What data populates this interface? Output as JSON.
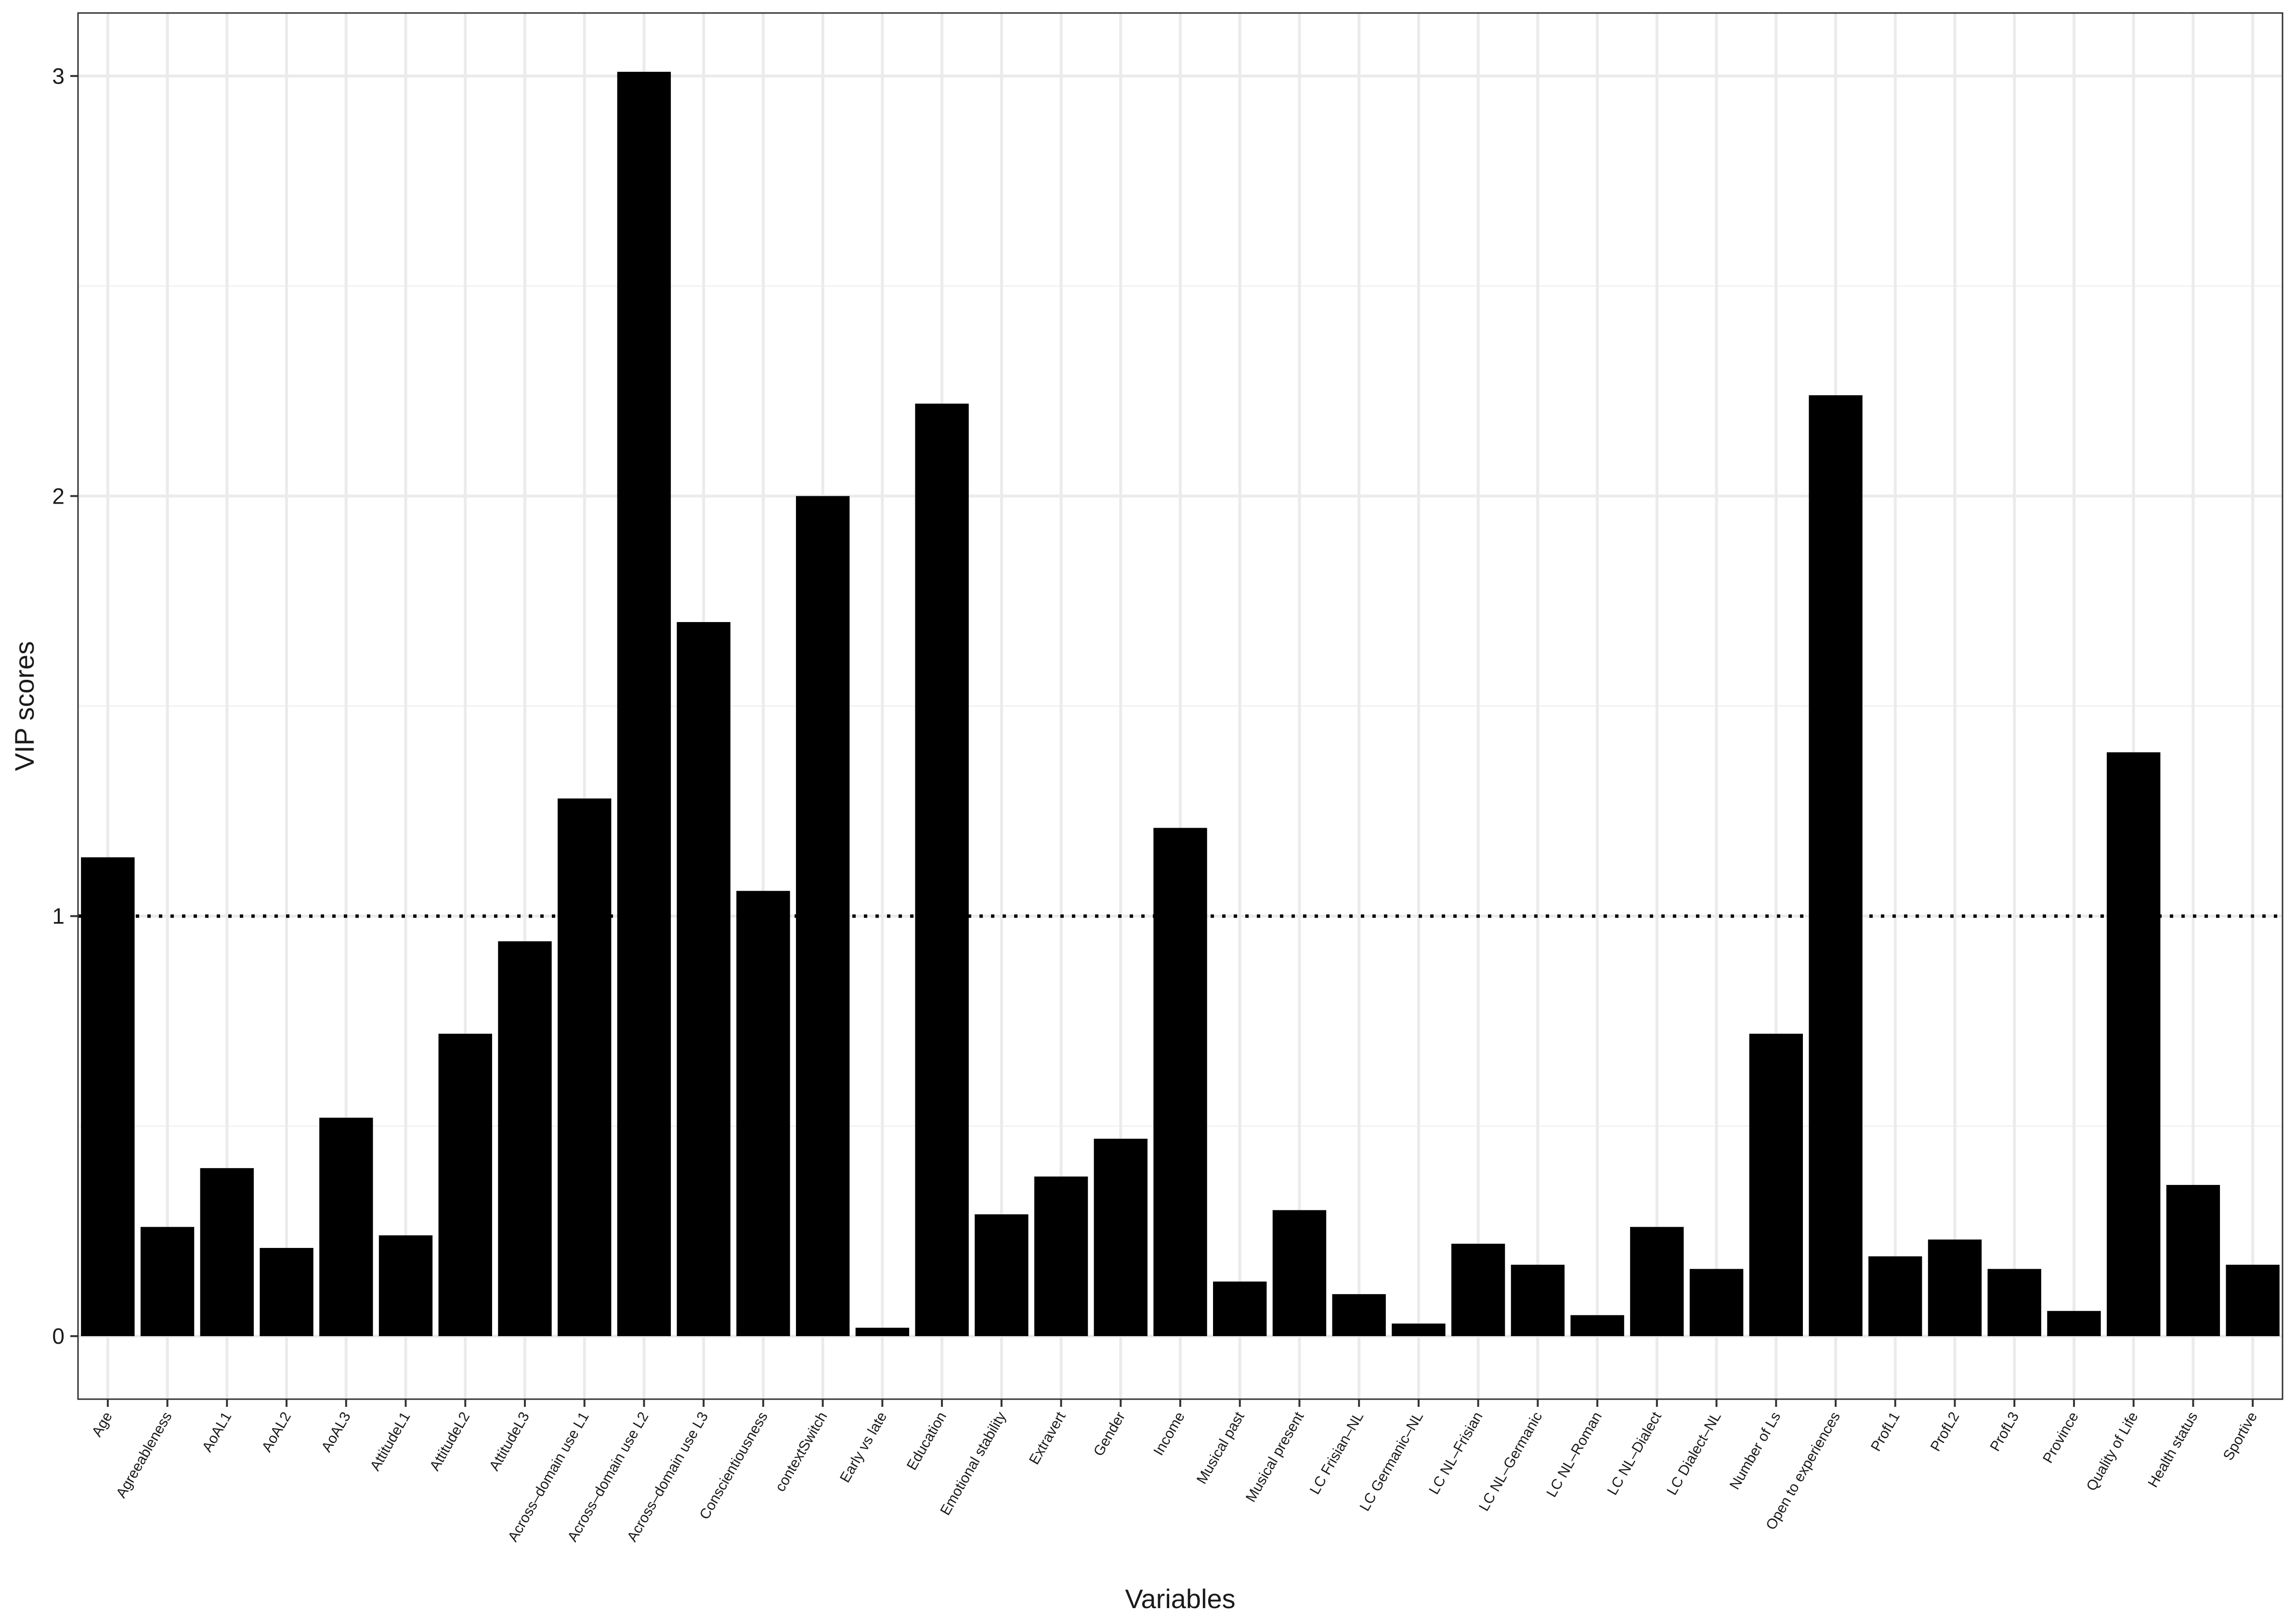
{
  "chart_data": {
    "type": "bar",
    "xlabel": "Variables",
    "ylabel": "VIP scores",
    "ylim": [
      -0.15,
      3.15
    ],
    "yticks": [
      0,
      1,
      2,
      3
    ],
    "grid": true,
    "reference_line": {
      "y": 1,
      "style": "dotted"
    },
    "bar_color": "#000000",
    "categories": [
      "Age",
      "Agreeableness",
      "AoAL1",
      "AoAL2",
      "AoAL3",
      "AttitudeL1",
      "AttitudeL2",
      "AttitudeL3",
      "Across–domain use L1",
      "Across–domain use L2",
      "Across–domain use L3",
      "Conscientiousness",
      "contextSwitch",
      "Early vs late",
      "Education",
      "Emotional stability",
      "Extravert",
      "Gender",
      "Income",
      "Musical past",
      "Musical present",
      "LC Frisian–NL",
      "LC Germanic–NL",
      "LC NL–Frisian",
      "LC NL–Germanic",
      "LC NL–Roman",
      "LC NL–Dialect",
      "LC Dialect–NL",
      "Number of Ls",
      "Open to experiences",
      "ProfL1",
      "ProfL2",
      "ProfL3",
      "Province",
      "Quality of Life",
      "Health status",
      "Sportive"
    ],
    "values": [
      1.14,
      0.26,
      0.4,
      0.21,
      0.52,
      0.24,
      0.72,
      0.94,
      1.28,
      3.01,
      1.7,
      1.06,
      2.0,
      0.02,
      2.22,
      0.29,
      0.38,
      0.47,
      1.21,
      0.13,
      0.3,
      0.1,
      0.03,
      0.22,
      0.17,
      0.05,
      0.26,
      0.16,
      0.72,
      2.24,
      0.19,
      0.23,
      0.16,
      0.06,
      1.39,
      0.36,
      0.17
    ]
  }
}
